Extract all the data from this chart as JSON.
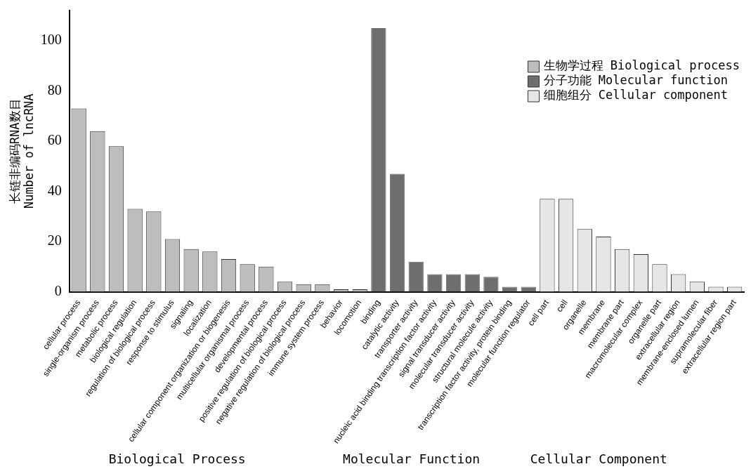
{
  "chart_data": {
    "type": "bar",
    "ylabel": "长链非编码RNA数目\nNumber of lncRNA",
    "categories": [
      "cellular process",
      "single-organism process",
      "metabolic process",
      "biological regulation",
      "regulation of biological process",
      "response to stimulus",
      "signaling",
      "localization",
      "cellular component organization or biogenesis",
      "multicellular organismal process",
      "developmental process",
      "positive regulation of biological process",
      "negative regulation of biological process",
      "immune system process",
      "behavior",
      "locomotion",
      "binding",
      "catalytic activity",
      "transporter activity",
      "nucleic acid binding transcription factor activity",
      "signal transducer activity",
      "molecular transducer activity",
      "structural molecule activity",
      "transcription factor activity, protein binding",
      "molecular function regulator",
      "cell part",
      "cell",
      "organelle",
      "membrane",
      "membrane part",
      "macromolecular complex",
      "organelle part",
      "extracellular region",
      "membrane-enclosed lumen",
      "supramolecular fiber",
      "extracellular region part"
    ],
    "series": [
      {
        "name": "生物学过程 Biological process",
        "color": "#bdbdbd",
        "values": [
          73,
          64,
          58,
          33,
          32,
          21,
          17,
          16,
          13,
          11,
          10,
          4,
          3,
          3,
          1,
          1,
          null,
          null,
          null,
          null,
          null,
          null,
          null,
          null,
          null,
          null,
          null,
          null,
          null,
          null,
          null,
          null,
          null,
          null,
          null,
          null
        ]
      },
      {
        "name": "分子功能 Molecular function",
        "color": "#6e6e6e",
        "values": [
          null,
          null,
          null,
          null,
          null,
          null,
          null,
          null,
          null,
          null,
          null,
          null,
          null,
          null,
          null,
          null,
          105,
          47,
          12,
          7,
          7,
          7,
          6,
          2,
          2,
          null,
          null,
          null,
          null,
          null,
          null,
          null,
          null,
          null,
          null,
          null
        ]
      },
      {
        "name": "细胞组分 Cellular component",
        "color": "#e6e6e6",
        "values": [
          null,
          null,
          null,
          null,
          null,
          null,
          null,
          null,
          null,
          null,
          null,
          null,
          null,
          null,
          null,
          null,
          null,
          null,
          null,
          null,
          null,
          null,
          null,
          null,
          null,
          37,
          37,
          25,
          22,
          17,
          15,
          11,
          7,
          4,
          2,
          2
        ]
      }
    ],
    "annotations": [
      "Biological Process",
      "Molecular Function",
      "Cellular Component"
    ],
    "ylim": [
      0,
      112
    ],
    "yticks": [
      0,
      20,
      40,
      60,
      80,
      100
    ],
    "grid": false,
    "legend": "top right"
  }
}
